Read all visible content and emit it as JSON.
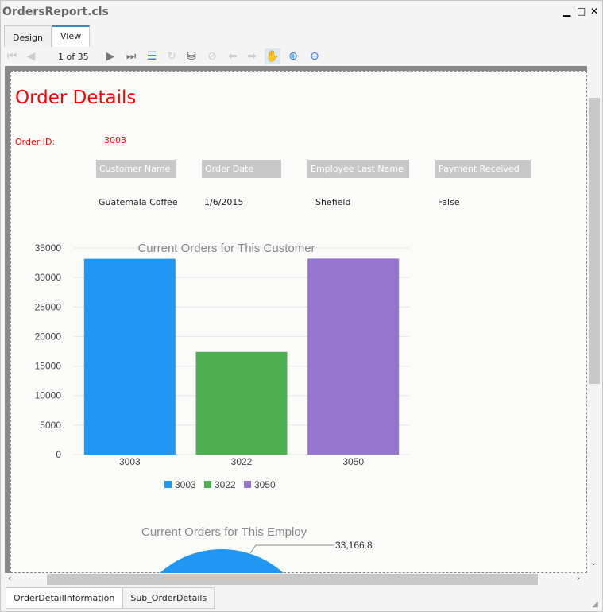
{
  "window": {
    "title": "OrdersReport.cls",
    "tabs": [
      "Design",
      "View"
    ],
    "active_tab": "View"
  },
  "toolbar": {
    "pager": "1 of 35"
  },
  "report": {
    "title": "Order Details",
    "order_id_label": "Order ID:",
    "order_id": "3003",
    "columns": [
      "Customer Name",
      "Order Date",
      "Employee Last Name",
      "Payment Received"
    ],
    "values": [
      "Guatemala Coffee",
      "1/6/2015",
      "Shefield",
      "False"
    ]
  },
  "chart_data": [
    {
      "type": "bar",
      "title": "Current Orders for This Customer",
      "categories": [
        "3003",
        "3022",
        "3050"
      ],
      "values": [
        33166.8,
        17400,
        33200
      ],
      "colors": [
        "#2196f3",
        "#4caf50",
        "#9575cd"
      ],
      "ylim": [
        0,
        35000
      ],
      "yticks": [
        0,
        5000,
        10000,
        15000,
        20000,
        25000,
        30000,
        35000
      ],
      "legend": [
        "3003",
        "3022",
        "3050"
      ],
      "legend_position": "bottom",
      "grid": true
    },
    {
      "type": "pie",
      "title": "Current Orders for This Employ",
      "data_labels": [
        "33,166.8"
      ],
      "colors": [
        "#2196f3"
      ]
    }
  ],
  "bottom_tabs": [
    "OrderDetailInformation",
    "Sub_OrderDetails"
  ]
}
